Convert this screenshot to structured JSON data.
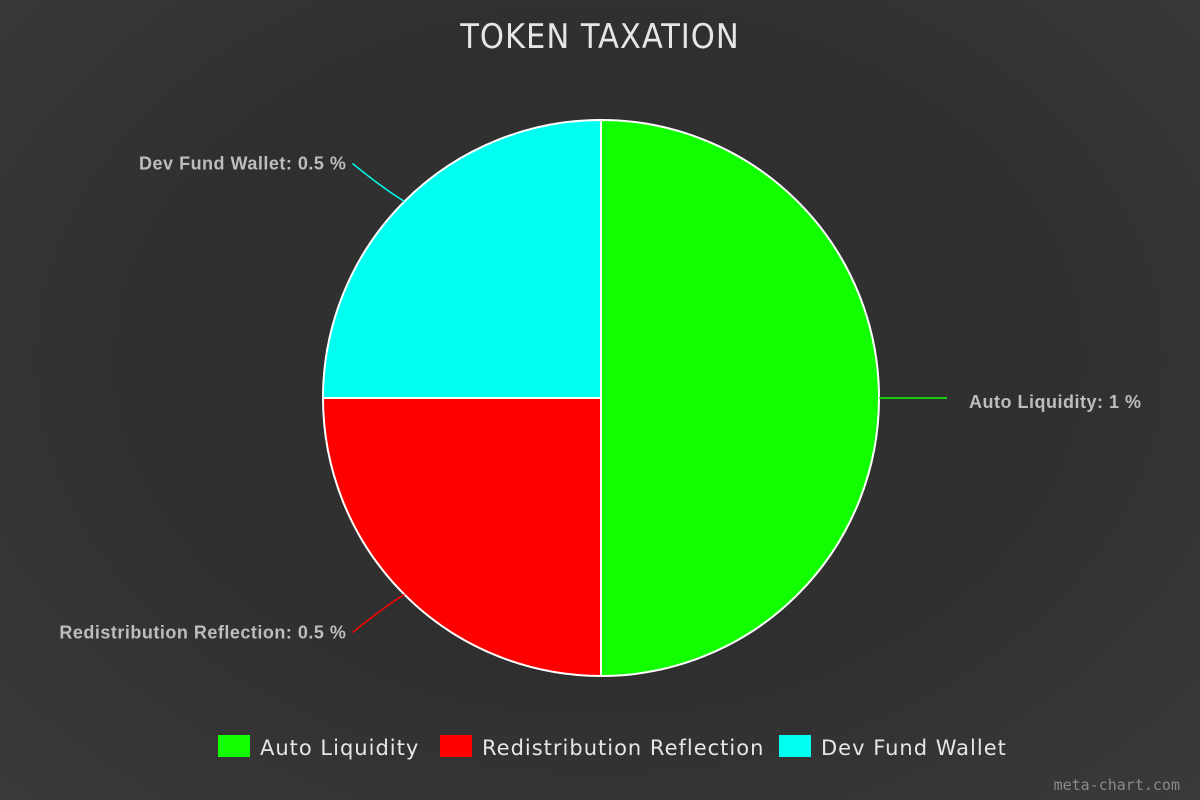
{
  "chart_data": {
    "type": "pie",
    "title": "TOKEN TAXATION",
    "categories": [
      "Auto Liquidity",
      "Redistribution Reflection",
      "Dev Fund Wallet"
    ],
    "values": [
      1,
      0.5,
      0.5
    ],
    "unit": "%",
    "slice_labels": [
      "Auto Liquidity: 1 %",
      "Redistribution Reflection: 0.5 %",
      "Dev Fund Wallet: 0.5 %"
    ],
    "colors": [
      "#11ff00",
      "#ff0000",
      "#00fff0"
    ],
    "legend": {
      "position": "bottom",
      "entries": [
        "Auto Liquidity",
        "Redistribution Reflection",
        "Dev Fund Wallet"
      ]
    }
  },
  "watermark": "meta-chart.com"
}
